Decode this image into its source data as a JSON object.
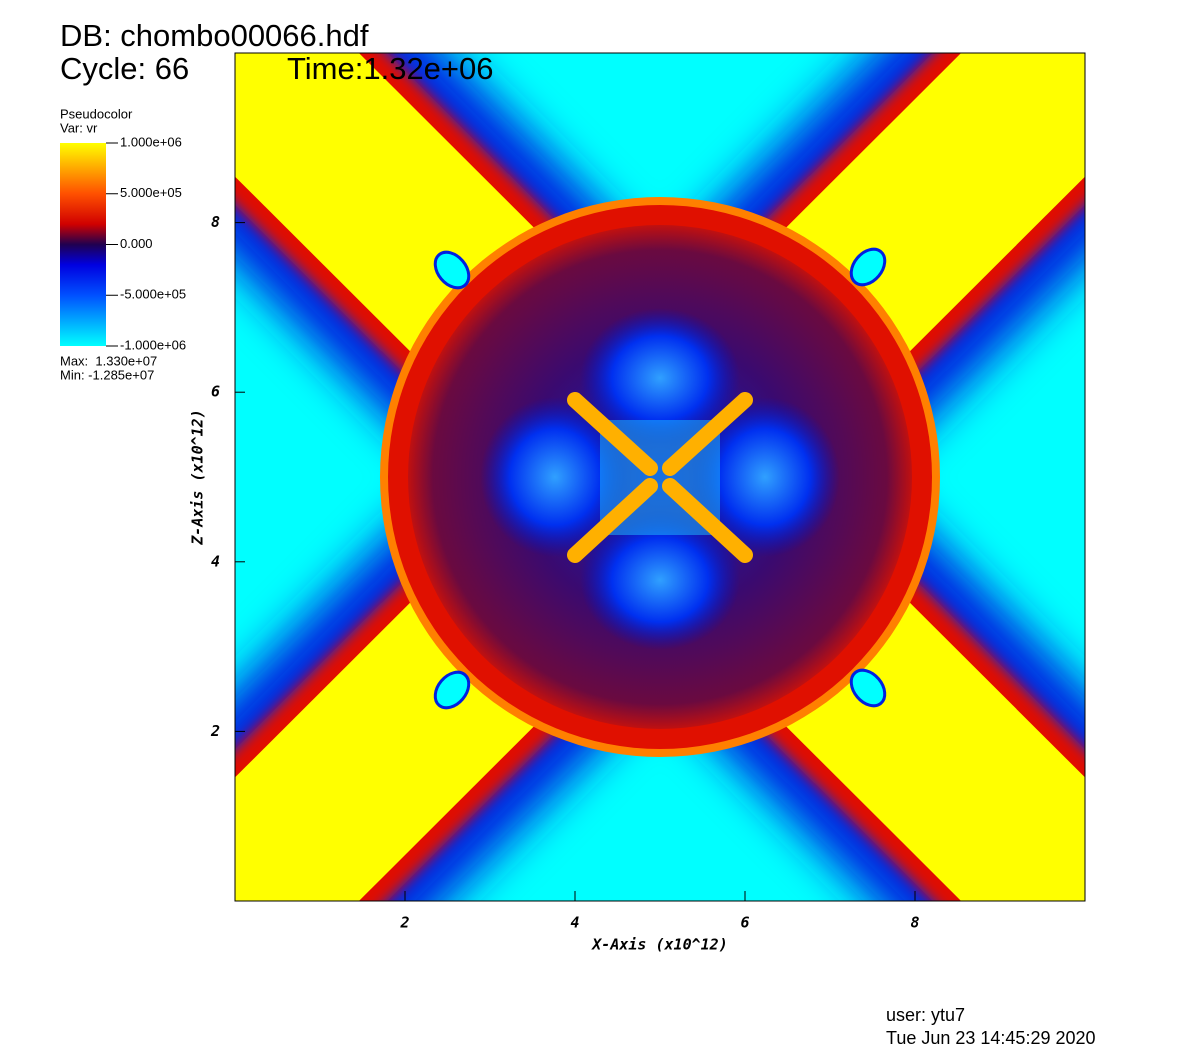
{
  "header": {
    "db": "DB: chombo00066.hdf",
    "cycle": "Cycle: 66",
    "time": "Time:1.32e+06"
  },
  "legend": {
    "title": "Pseudocolor",
    "var": "Var: vr",
    "max": "Max:  1.330e+07",
    "min": "Min: -1.285e+07"
  },
  "chart_data": {
    "type": "pseudocolor",
    "xlabel": "X-Axis (x10^12)",
    "ylabel": "Z-Axis (x10^12)",
    "xlim": [
      0,
      10
    ],
    "ylim": [
      0,
      10
    ],
    "xticks": [
      2,
      4,
      6,
      8
    ],
    "yticks": [
      2,
      4,
      6,
      8
    ],
    "colorbar": {
      "lim": [
        -1000000,
        1000000
      ],
      "ticks": [
        {
          "value": 1000000,
          "label": "1.000e+06"
        },
        {
          "value": 500000,
          "label": "5.000e+05"
        },
        {
          "value": 0,
          "label": "0.000"
        },
        {
          "value": -500000,
          "label": "-5.000e+05"
        },
        {
          "value": -1000000,
          "label": "-1.000e+06"
        }
      ]
    }
  },
  "footer": {
    "user": "user: ytu7",
    "date": "Tue Jun 23 14:45:29 2020"
  }
}
